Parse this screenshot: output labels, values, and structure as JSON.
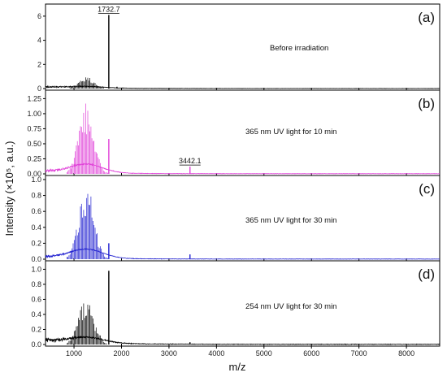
{
  "chart_data": {
    "type": "line",
    "xlabel": "m/z",
    "ylabel": "Intensity (×10⁵, a.u.)",
    "xlim": [
      400,
      8700
    ],
    "x_ticks": [
      "1000",
      "2000",
      "3000",
      "4000",
      "5000",
      "6000",
      "7000",
      "8000"
    ],
    "x_tick_values": [
      1000,
      2000,
      3000,
      4000,
      5000,
      6000,
      7000,
      8000
    ],
    "grid": false,
    "panels": [
      {
        "letter": "(a)",
        "condition": "Before irradiation",
        "color": "#000000",
        "ylim": [
          0,
          6.8
        ],
        "y_ticks": [
          "0",
          "2",
          "4",
          "6"
        ],
        "y_tick_values": [
          0,
          2,
          4,
          6
        ],
        "envelope_amplitude": 1.0,
        "envelope_spread": 230,
        "baseline_noise": 0.2,
        "peaks": [
          {
            "mz": 1732.7,
            "intensity": 6.1,
            "label": "1732.7"
          },
          {
            "mz": 1905,
            "intensity": 0.15
          }
        ]
      },
      {
        "letter": "(b)",
        "condition": "365 nm UV light for 10 min",
        "color": "#e040d8",
        "ylim": [
          0,
          1.35
        ],
        "y_ticks": [
          "0.00",
          "0.25",
          "0.50",
          "0.75",
          "1.00",
          "1.25"
        ],
        "y_tick_values": [
          0,
          0.25,
          0.5,
          0.75,
          1.0,
          1.25
        ],
        "envelope_amplitude": 1.2,
        "envelope_spread": 220,
        "baseline_noise": 0.32,
        "peaks": [
          {
            "mz": 1732.7,
            "intensity": 0.58
          },
          {
            "mz": 3442.1,
            "intensity": 0.12,
            "label": "3442.1"
          }
        ]
      },
      {
        "letter": "(c)",
        "condition": "365 nm UV light for 30 min",
        "color": "#2020d0",
        "ylim": [
          0,
          1.02
        ],
        "y_ticks": [
          "0.0",
          "0.2",
          "0.4",
          "0.6",
          "0.8",
          "1.0"
        ],
        "y_tick_values": [
          0,
          0.2,
          0.4,
          0.6,
          0.8,
          1.0
        ],
        "envelope_amplitude": 0.95,
        "envelope_spread": 225,
        "baseline_noise": 0.28,
        "peaks": [
          {
            "mz": 1732.7,
            "intensity": 0.2
          },
          {
            "mz": 3442.1,
            "intensity": 0.06
          }
        ]
      },
      {
        "letter": "(d)",
        "condition": "254 nm UV light for 30 min",
        "color": "#000000",
        "ylim": [
          0,
          1.08
        ],
        "y_ticks": [
          "0.0",
          "0.2",
          "0.4",
          "0.6",
          "0.8",
          "1.0"
        ],
        "y_tick_values": [
          0,
          0.2,
          0.4,
          0.6,
          0.8,
          1.0
        ],
        "envelope_amplitude": 0.62,
        "envelope_spread": 230,
        "baseline_noise": 0.5,
        "peaks": [
          {
            "mz": 1732.7,
            "intensity": 0.98
          },
          {
            "mz": 3442.1,
            "intensity": 0.03
          }
        ]
      }
    ]
  }
}
